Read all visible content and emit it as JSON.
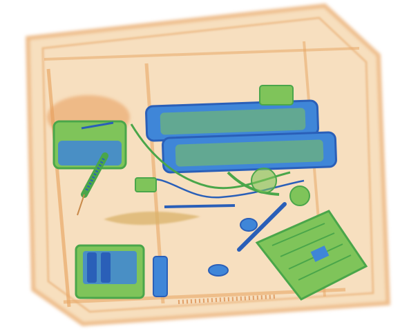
{
  "image": {
    "kind": "x-ray baggage scan",
    "background": "#ffffff",
    "palette": {
      "organic": "#e8a868",
      "organic_light": "#f4d4a8",
      "organic_dark": "#d98a4a",
      "mixed": "#7fc45a",
      "mixed_dark": "#4aa64a",
      "inorganic": "#3f86d8",
      "inorganic_dark": "#2a5fb8"
    },
    "contents": [
      "suitcase-shell",
      "laptop-bars",
      "battery-pack",
      "power-bank",
      "cable-bundle",
      "scissors",
      "circuit-board",
      "wooden-stick"
    ]
  }
}
